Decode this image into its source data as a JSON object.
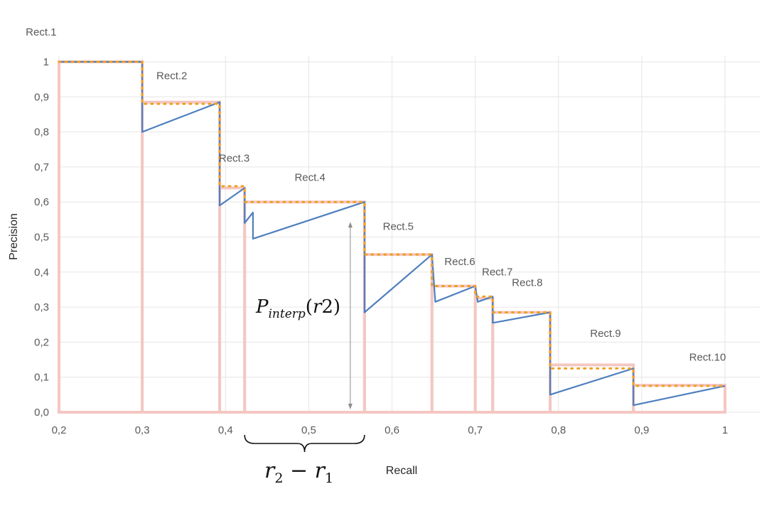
{
  "chart_data": {
    "type": "line",
    "xlabel": "Recall",
    "ylabel": "Precision",
    "xlim": [
      0.2,
      1.0
    ],
    "ylim": [
      0.0,
      1.0
    ],
    "x_ticks": [
      "0,2",
      "0,3",
      "0,4",
      "0,5",
      "0,6",
      "0,7",
      "0,8",
      "0,9",
      "1"
    ],
    "y_ticks": [
      "0,0",
      "0,1",
      "0,2",
      "0,3",
      "0,4",
      "0,5",
      "0,6",
      "0,7",
      "0,8",
      "0,9",
      "1"
    ],
    "grid": true,
    "colors": {
      "precision_curve": "#4F7FBF",
      "interpolated": "#F0A020",
      "rectangles": "#F4C7C3",
      "grid": "#E6E6E6",
      "tick_text": "#595959"
    },
    "series": [
      {
        "role": "precision_curve",
        "x": [
          0.2,
          0.3,
          0.3,
          0.393,
          0.393,
          0.423,
          0.423,
          0.433,
          0.433,
          0.567,
          0.567,
          0.648,
          0.652,
          0.7,
          0.703,
          0.721,
          0.721,
          0.79,
          0.79,
          0.89,
          0.89,
          1.0
        ],
        "y": [
          1.0,
          1.0,
          0.8,
          0.885,
          0.59,
          0.64,
          0.54,
          0.57,
          0.495,
          0.6,
          0.285,
          0.45,
          0.315,
          0.36,
          0.315,
          0.33,
          0.255,
          0.285,
          0.05,
          0.125,
          0.02,
          0.075
        ]
      },
      {
        "role": "interpolated",
        "x": [
          0.2,
          0.3,
          0.3,
          0.393,
          0.393,
          0.423,
          0.423,
          0.567,
          0.567,
          0.648,
          0.648,
          0.7,
          0.7,
          0.721,
          0.721,
          0.79,
          0.79,
          0.89,
          0.89,
          1.0
        ],
        "y": [
          1.0,
          1.0,
          0.88,
          0.88,
          0.645,
          0.645,
          0.6,
          0.6,
          0.45,
          0.45,
          0.36,
          0.36,
          0.33,
          0.33,
          0.285,
          0.285,
          0.125,
          0.125,
          0.075,
          0.075
        ]
      }
    ],
    "rectangles": [
      {
        "label": "Rect.1",
        "x0": 0.2,
        "x1": 0.3,
        "height": 1.0
      },
      {
        "label": "Rect.2",
        "x0": 0.3,
        "x1": 0.393,
        "height": 0.885
      },
      {
        "label": "Rect.3",
        "x0": 0.393,
        "x1": 0.423,
        "height": 0.64
      },
      {
        "label": "Rect.4",
        "x0": 0.423,
        "x1": 0.567,
        "height": 0.6
      },
      {
        "label": "Rect.5",
        "x0": 0.567,
        "x1": 0.648,
        "height": 0.45
      },
      {
        "label": "Rect.6",
        "x0": 0.648,
        "x1": 0.7,
        "height": 0.36
      },
      {
        "label": "Rect.7",
        "x0": 0.7,
        "x1": 0.721,
        "height": 0.325
      },
      {
        "label": "Rect.8",
        "x0": 0.721,
        "x1": 0.79,
        "height": 0.285
      },
      {
        "label": "Rect.9",
        "x0": 0.79,
        "x1": 0.89,
        "height": 0.135
      },
      {
        "label": "Rect.10",
        "x0": 0.89,
        "x1": 1.0,
        "height": 0.077
      }
    ],
    "annotations": {
      "p_interp": "P_{interp}(r2)",
      "p_interp_value": 0.6,
      "width_label": "r_2 − r_1",
      "width_range": [
        0.423,
        0.567
      ]
    }
  }
}
